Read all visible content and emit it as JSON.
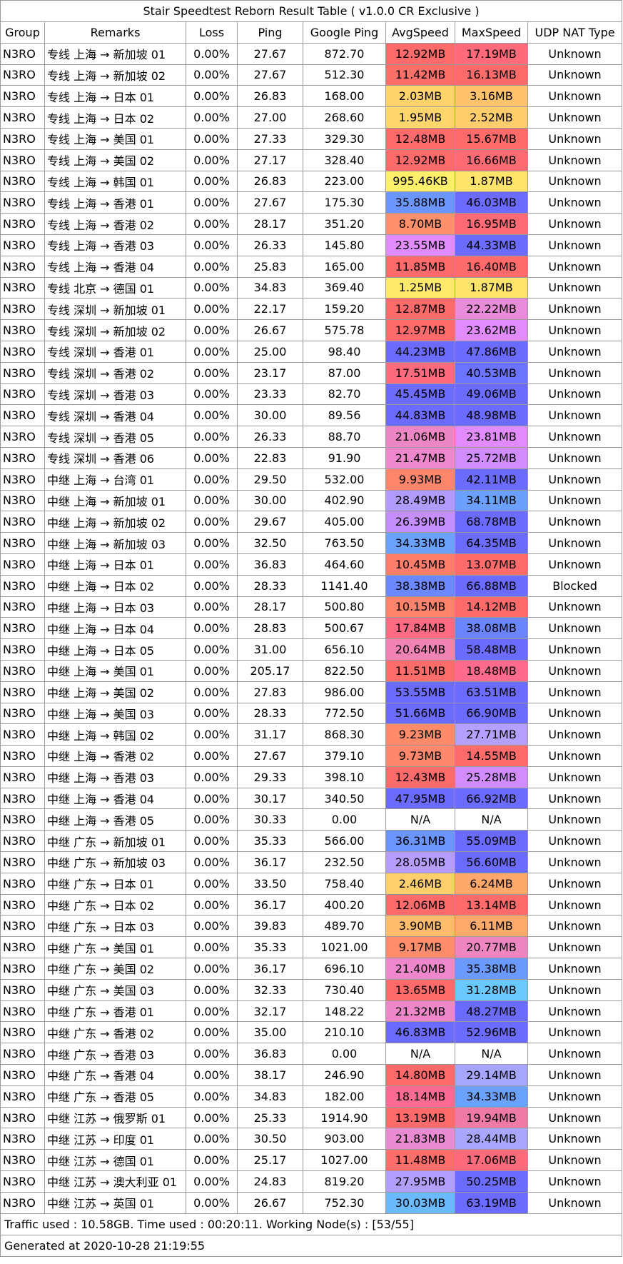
{
  "title": "Stair Speedtest Reborn Result Table ( v1.0.0 CR Exclusive )",
  "headers": [
    "Group",
    "Remarks",
    "Loss",
    "Ping",
    "Google Ping",
    "AvgSpeed",
    "MaxSpeed",
    "UDP NAT Type"
  ],
  "rows": [
    {
      "group": "N3RO",
      "remarks": "专线 上海 → 新加坡 01",
      "loss": "0.00%",
      "ping": "27.67",
      "gping": "872.70",
      "avg": "12.92MB",
      "max": "17.19MB",
      "nat": "Unknown",
      "avg_color": "#ff6b6b",
      "max_color": "#ff6b7a"
    },
    {
      "group": "N3RO",
      "remarks": "专线 上海 → 新加坡 02",
      "loss": "0.00%",
      "ping": "27.67",
      "gping": "512.30",
      "avg": "11.42MB",
      "max": "16.13MB",
      "nat": "Unknown",
      "avg_color": "#ff6f6a",
      "max_color": "#ff6a6a"
    },
    {
      "group": "N3RO",
      "remarks": "专线 上海 → 日本 01",
      "loss": "0.00%",
      "ping": "26.83",
      "gping": "168.00",
      "avg": "2.03MB",
      "max": "3.16MB",
      "nat": "Unknown",
      "avg_color": "#ffd36b",
      "max_color": "#ffc46b"
    },
    {
      "group": "N3RO",
      "remarks": "专线 上海 → 日本 02",
      "loss": "0.00%",
      "ping": "27.00",
      "gping": "268.60",
      "avg": "1.95MB",
      "max": "2.52MB",
      "nat": "Unknown",
      "avg_color": "#ffd66b",
      "max_color": "#ffcd6b"
    },
    {
      "group": "N3RO",
      "remarks": "专线 上海 → 美国 01",
      "loss": "0.00%",
      "ping": "27.33",
      "gping": "329.30",
      "avg": "12.48MB",
      "max": "15.67MB",
      "nat": "Unknown",
      "avg_color": "#ff6b6b",
      "max_color": "#ff6b6b"
    },
    {
      "group": "N3RO",
      "remarks": "专线 上海 → 美国 02",
      "loss": "0.00%",
      "ping": "27.17",
      "gping": "328.40",
      "avg": "12.92MB",
      "max": "16.66MB",
      "nat": "Unknown",
      "avg_color": "#ff6b6b",
      "max_color": "#ff6b72"
    },
    {
      "group": "N3RO",
      "remarks": "专线 上海 → 韩国 01",
      "loss": "0.00%",
      "ping": "26.83",
      "gping": "223.00",
      "avg": "995.46KB",
      "max": "1.87MB",
      "nat": "Unknown",
      "avg_color": "#ffef6b",
      "max_color": "#ffe46b"
    },
    {
      "group": "N3RO",
      "remarks": "专线 上海 → 香港 01",
      "loss": "0.00%",
      "ping": "27.67",
      "gping": "175.30",
      "avg": "35.88MB",
      "max": "46.03MB",
      "nat": "Unknown",
      "avg_color": "#6b96ff",
      "max_color": "#6b6bff"
    },
    {
      "group": "N3RO",
      "remarks": "专线 上海 → 香港 02",
      "loss": "0.00%",
      "ping": "28.17",
      "gping": "351.20",
      "avg": "8.70MB",
      "max": "16.95MB",
      "nat": "Unknown",
      "avg_color": "#ff906b",
      "max_color": "#ff6b75"
    },
    {
      "group": "N3RO",
      "remarks": "专线 上海 → 香港 03",
      "loss": "0.00%",
      "ping": "26.33",
      "gping": "145.80",
      "avg": "23.55MB",
      "max": "44.33MB",
      "nat": "Unknown",
      "avg_color": "#e28bff",
      "max_color": "#6b6bff"
    },
    {
      "group": "N3RO",
      "remarks": "专线 上海 → 香港 04",
      "loss": "0.00%",
      "ping": "25.83",
      "gping": "165.00",
      "avg": "11.85MB",
      "max": "16.40MB",
      "nat": "Unknown",
      "avg_color": "#ff6b6b",
      "max_color": "#ff6b6b"
    },
    {
      "group": "N3RO",
      "remarks": "专线 北京 → 德国 01",
      "loss": "0.00%",
      "ping": "34.83",
      "gping": "369.40",
      "avg": "1.25MB",
      "max": "1.87MB",
      "nat": "Unknown",
      "avg_color": "#ffe96b",
      "max_color": "#ffe46b"
    },
    {
      "group": "N3RO",
      "remarks": "专线 深圳 → 新加坡 01",
      "loss": "0.00%",
      "ping": "22.17",
      "gping": "159.20",
      "avg": "12.87MB",
      "max": "22.22MB",
      "nat": "Unknown",
      "avg_color": "#ff6b6b",
      "max_color": "#e88bd8"
    },
    {
      "group": "N3RO",
      "remarks": "专线 深圳 → 新加坡 02",
      "loss": "0.00%",
      "ping": "26.67",
      "gping": "575.78",
      "avg": "12.97MB",
      "max": "23.62MB",
      "nat": "Unknown",
      "avg_color": "#ff6b6b",
      "max_color": "#e28bff"
    },
    {
      "group": "N3RO",
      "remarks": "专线 深圳 → 香港 01",
      "loss": "0.00%",
      "ping": "25.00",
      "gping": "98.40",
      "avg": "44.23MB",
      "max": "47.86MB",
      "nat": "Unknown",
      "avg_color": "#6b6bff",
      "max_color": "#6b6bff"
    },
    {
      "group": "N3RO",
      "remarks": "专线 深圳 → 香港 02",
      "loss": "0.00%",
      "ping": "23.17",
      "gping": "87.00",
      "avg": "17.51MB",
      "max": "40.53MB",
      "nat": "Unknown",
      "avg_color": "#ff6b7c",
      "max_color": "#6b73ff"
    },
    {
      "group": "N3RO",
      "remarks": "专线 深圳 → 香港 03",
      "loss": "0.00%",
      "ping": "23.33",
      "gping": "82.70",
      "avg": "45.45MB",
      "max": "49.06MB",
      "nat": "Unknown",
      "avg_color": "#6b6bff",
      "max_color": "#6b6bff"
    },
    {
      "group": "N3RO",
      "remarks": "专线 深圳 → 香港 04",
      "loss": "0.00%",
      "ping": "30.00",
      "gping": "89.56",
      "avg": "44.83MB",
      "max": "48.98MB",
      "nat": "Unknown",
      "avg_color": "#6b6bff",
      "max_color": "#6b6bff"
    },
    {
      "group": "N3RO",
      "remarks": "专线 深圳 → 香港 05",
      "loss": "0.00%",
      "ping": "26.33",
      "gping": "88.70",
      "avg": "21.06MB",
      "max": "23.81MB",
      "nat": "Unknown",
      "avg_color": "#ed86c4",
      "max_color": "#e28bff"
    },
    {
      "group": "N3RO",
      "remarks": "专线 深圳 → 香港 06",
      "loss": "0.00%",
      "ping": "22.83",
      "gping": "91.90",
      "avg": "21.47MB",
      "max": "25.72MB",
      "nat": "Unknown",
      "avg_color": "#ee87cc",
      "max_color": "#d18dff"
    },
    {
      "group": "N3RO",
      "remarks": "中继 上海 → 台湾 01",
      "loss": "0.00%",
      "ping": "29.50",
      "gping": "532.00",
      "avg": "9.93MB",
      "max": "42.11MB",
      "nat": "Unknown",
      "avg_color": "#ff866b",
      "max_color": "#6b6bff"
    },
    {
      "group": "N3RO",
      "remarks": "中继 上海 → 新加坡 01",
      "loss": "0.00%",
      "ping": "30.00",
      "gping": "402.90",
      "avg": "28.49MB",
      "max": "34.11MB",
      "nat": "Unknown",
      "avg_color": "#b19bff",
      "max_color": "#6ba0ff"
    },
    {
      "group": "N3RO",
      "remarks": "中继 上海 → 新加坡 02",
      "loss": "0.00%",
      "ping": "29.67",
      "gping": "405.00",
      "avg": "26.39MB",
      "max": "68.78MB",
      "nat": "Unknown",
      "avg_color": "#c58fff",
      "max_color": "#6b6bff"
    },
    {
      "group": "N3RO",
      "remarks": "中继 上海 → 新加坡 03",
      "loss": "0.00%",
      "ping": "32.50",
      "gping": "763.50",
      "avg": "34.33MB",
      "max": "64.35MB",
      "nat": "Unknown",
      "avg_color": "#6ba2ff",
      "max_color": "#6b6bff"
    },
    {
      "group": "N3RO",
      "remarks": "中继 上海 → 日本 01",
      "loss": "0.00%",
      "ping": "36.83",
      "gping": "464.60",
      "avg": "10.45MB",
      "max": "13.07MB",
      "nat": "Unknown",
      "avg_color": "#ff7e6b",
      "max_color": "#ff6b6b"
    },
    {
      "group": "N3RO",
      "remarks": "中继 上海 → 日本 02",
      "loss": "0.00%",
      "ping": "28.33",
      "gping": "1141.40",
      "avg": "38.38MB",
      "max": "66.88MB",
      "nat": "Blocked",
      "avg_color": "#6b88ff",
      "max_color": "#6b6bff"
    },
    {
      "group": "N3RO",
      "remarks": "中继 上海 → 日本 03",
      "loss": "0.00%",
      "ping": "28.17",
      "gping": "500.80",
      "avg": "10.15MB",
      "max": "14.12MB",
      "nat": "Unknown",
      "avg_color": "#ff826b",
      "max_color": "#ff6b6b"
    },
    {
      "group": "N3RO",
      "remarks": "中继 上海 → 日本 04",
      "loss": "0.00%",
      "ping": "28.83",
      "gping": "500.67",
      "avg": "17.84MB",
      "max": "38.08MB",
      "nat": "Unknown",
      "avg_color": "#ff6b82",
      "max_color": "#6b84ff"
    },
    {
      "group": "N3RO",
      "remarks": "中继 上海 → 日本 05",
      "loss": "0.00%",
      "ping": "31.00",
      "gping": "656.10",
      "avg": "20.64MB",
      "max": "58.48MB",
      "nat": "Unknown",
      "avg_color": "#f182b4",
      "max_color": "#6b6bff"
    },
    {
      "group": "N3RO",
      "remarks": "中继 上海 → 美国 01",
      "loss": "0.00%",
      "ping": "205.17",
      "gping": "822.50",
      "avg": "11.51MB",
      "max": "18.48MB",
      "nat": "Unknown",
      "avg_color": "#ff6d6b",
      "max_color": "#ff6b8c"
    },
    {
      "group": "N3RO",
      "remarks": "中继 上海 → 美国 02",
      "loss": "0.00%",
      "ping": "27.83",
      "gping": "986.00",
      "avg": "53.55MB",
      "max": "63.51MB",
      "nat": "Unknown",
      "avg_color": "#6b6bff",
      "max_color": "#6b6bff"
    },
    {
      "group": "N3RO",
      "remarks": "中继 上海 → 美国 03",
      "loss": "0.00%",
      "ping": "28.33",
      "gping": "772.50",
      "avg": "51.66MB",
      "max": "66.90MB",
      "nat": "Unknown",
      "avg_color": "#6b6bff",
      "max_color": "#6b6bff"
    },
    {
      "group": "N3RO",
      "remarks": "中继 上海 → 韩国 02",
      "loss": "0.00%",
      "ping": "31.17",
      "gping": "868.30",
      "avg": "9.23MB",
      "max": "27.71MB",
      "nat": "Unknown",
      "avg_color": "#ff8b6b",
      "max_color": "#b5a0ff"
    },
    {
      "group": "N3RO",
      "remarks": "中继 上海 → 香港 02",
      "loss": "0.00%",
      "ping": "27.67",
      "gping": "379.10",
      "avg": "9.73MB",
      "max": "14.55MB",
      "nat": "Unknown",
      "avg_color": "#ff876b",
      "max_color": "#ff6b6b"
    },
    {
      "group": "N3RO",
      "remarks": "中继 上海 → 香港 03",
      "loss": "0.00%",
      "ping": "29.33",
      "gping": "398.10",
      "avg": "12.43MB",
      "max": "25.28MB",
      "nat": "Unknown",
      "avg_color": "#ff6b6b",
      "max_color": "#d18dff"
    },
    {
      "group": "N3RO",
      "remarks": "中继 上海 → 香港 04",
      "loss": "0.00%",
      "ping": "30.17",
      "gping": "340.50",
      "avg": "47.95MB",
      "max": "66.92MB",
      "nat": "Unknown",
      "avg_color": "#6b6bff",
      "max_color": "#6b6bff"
    },
    {
      "group": "N3RO",
      "remarks": "中继 上海 → 香港 05",
      "loss": "0.00%",
      "ping": "30.33",
      "gping": "0.00",
      "avg": "N/A",
      "max": "N/A",
      "nat": "Unknown",
      "avg_color": "#ffffff",
      "max_color": "#ffffff"
    },
    {
      "group": "N3RO",
      "remarks": "中继 广东 → 新加坡 01",
      "loss": "0.00%",
      "ping": "35.33",
      "gping": "566.00",
      "avg": "36.31MB",
      "max": "55.09MB",
      "nat": "Unknown",
      "avg_color": "#6b94ff",
      "max_color": "#6b6bff"
    },
    {
      "group": "N3RO",
      "remarks": "中继 广东 → 新加坡 03",
      "loss": "0.00%",
      "ping": "36.17",
      "gping": "232.50",
      "avg": "28.05MB",
      "max": "56.60MB",
      "nat": "Unknown",
      "avg_color": "#b49dff",
      "max_color": "#6b6bff"
    },
    {
      "group": "N3RO",
      "remarks": "中继 广东 → 日本 01",
      "loss": "0.00%",
      "ping": "33.50",
      "gping": "758.40",
      "avg": "2.46MB",
      "max": "6.24MB",
      "nat": "Unknown",
      "avg_color": "#ffcf6b",
      "max_color": "#ffa86b"
    },
    {
      "group": "N3RO",
      "remarks": "中继 广东 → 日本 02",
      "loss": "0.00%",
      "ping": "36.17",
      "gping": "400.20",
      "avg": "12.06MB",
      "max": "13.14MB",
      "nat": "Unknown",
      "avg_color": "#ff6b6b",
      "max_color": "#ff6b6b"
    },
    {
      "group": "N3RO",
      "remarks": "中继 广东 → 日本 03",
      "loss": "0.00%",
      "ping": "39.83",
      "gping": "489.70",
      "avg": "3.90MB",
      "max": "6.11MB",
      "nat": "Unknown",
      "avg_color": "#ffbd6b",
      "max_color": "#ffa96b"
    },
    {
      "group": "N3RO",
      "remarks": "中继 广东 → 美国 01",
      "loss": "0.00%",
      "ping": "35.33",
      "gping": "1021.00",
      "avg": "9.17MB",
      "max": "20.77MB",
      "nat": "Unknown",
      "avg_color": "#ff8c6b",
      "max_color": "#ee86c2"
    },
    {
      "group": "N3RO",
      "remarks": "中继 广东 → 美国 02",
      "loss": "0.00%",
      "ping": "36.17",
      "gping": "696.10",
      "avg": "21.40MB",
      "max": "35.38MB",
      "nat": "Unknown",
      "avg_color": "#ee87cb",
      "max_color": "#6b9aff"
    },
    {
      "group": "N3RO",
      "remarks": "中继 广东 → 美国 03",
      "loss": "0.00%",
      "ping": "32.33",
      "gping": "730.40",
      "avg": "13.65MB",
      "max": "31.28MB",
      "nat": "Unknown",
      "avg_color": "#ff6b6b",
      "max_color": "#6bc8ff"
    },
    {
      "group": "N3RO",
      "remarks": "中继 广东 → 香港 01",
      "loss": "0.00%",
      "ping": "32.17",
      "gping": "148.22",
      "avg": "21.32MB",
      "max": "48.27MB",
      "nat": "Unknown",
      "avg_color": "#ee87ca",
      "max_color": "#6b6bff"
    },
    {
      "group": "N3RO",
      "remarks": "中继 广东 → 香港 02",
      "loss": "0.00%",
      "ping": "35.00",
      "gping": "210.10",
      "avg": "46.83MB",
      "max": "52.96MB",
      "nat": "Unknown",
      "avg_color": "#6b6bff",
      "max_color": "#6b6bff"
    },
    {
      "group": "N3RO",
      "remarks": "中继 广东 → 香港 03",
      "loss": "0.00%",
      "ping": "36.83",
      "gping": "0.00",
      "avg": "N/A",
      "max": "N/A",
      "nat": "Unknown",
      "avg_color": "#ffffff",
      "max_color": "#ffffff"
    },
    {
      "group": "N3RO",
      "remarks": "中继 广东 → 香港 04",
      "loss": "0.00%",
      "ping": "38.17",
      "gping": "246.90",
      "avg": "14.80MB",
      "max": "29.14MB",
      "nat": "Unknown",
      "avg_color": "#ff6b6b",
      "max_color": "#a6a6ff"
    },
    {
      "group": "N3RO",
      "remarks": "中继 广东 → 香港 05",
      "loss": "0.00%",
      "ping": "34.83",
      "gping": "182.00",
      "avg": "18.14MB",
      "max": "34.33MB",
      "nat": "Unknown",
      "avg_color": "#fb6b94",
      "max_color": "#6ba2ff"
    },
    {
      "group": "N3RO",
      "remarks": "中继 江苏 → 俄罗斯 01",
      "loss": "0.00%",
      "ping": "25.33",
      "gping": "1914.90",
      "avg": "13.19MB",
      "max": "19.94MB",
      "nat": "Unknown",
      "avg_color": "#ff6b6b",
      "max_color": "#f07aa6"
    },
    {
      "group": "N3RO",
      "remarks": "中继 江苏 → 印度 01",
      "loss": "0.00%",
      "ping": "30.50",
      "gping": "903.00",
      "avg": "21.83MB",
      "max": "28.44MB",
      "nat": "Unknown",
      "avg_color": "#ea8ad2",
      "max_color": "#a9a6ff"
    },
    {
      "group": "N3RO",
      "remarks": "中继 江苏 → 德国 01",
      "loss": "0.00%",
      "ping": "25.17",
      "gping": "1027.00",
      "avg": "11.48MB",
      "max": "17.06MB",
      "nat": "Unknown",
      "avg_color": "#ff6e6b",
      "max_color": "#ff6b7a"
    },
    {
      "group": "N3RO",
      "remarks": "中继 江苏 → 澳大利亚 01",
      "loss": "0.00%",
      "ping": "24.83",
      "gping": "819.20",
      "avg": "27.95MB",
      "max": "50.25MB",
      "nat": "Unknown",
      "avg_color": "#b29eff",
      "max_color": "#6b6bff"
    },
    {
      "group": "N3RO",
      "remarks": "中继 江苏 → 英国 01",
      "loss": "0.00%",
      "ping": "26.67",
      "gping": "752.30",
      "avg": "30.03MB",
      "max": "63.19MB",
      "nat": "Unknown",
      "avg_color": "#6bbaff",
      "max_color": "#6b6bff"
    }
  ],
  "footer_traffic": "Traffic used : 10.58GB. Time used : 00:20:11. Working Node(s) : [53/55]",
  "footer_generated": "Generated at 2020-10-28 21:19:55"
}
